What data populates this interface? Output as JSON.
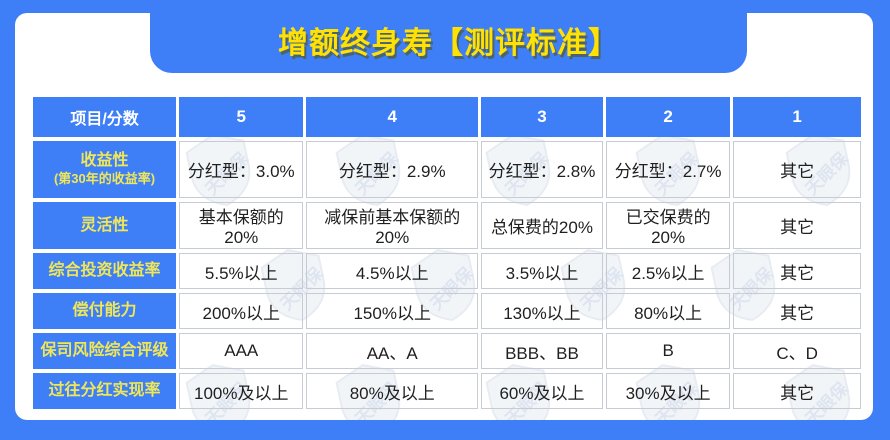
{
  "banner": {
    "title": "增额终身寿【测评标准】"
  },
  "watermark": {
    "text": "天眼保"
  },
  "colors": {
    "frame_blue": "#3E7EF7",
    "title_yellow": "#FFE103",
    "label_yellow": "#F0E756",
    "cell_border": "#c6cbd4"
  },
  "chart_data": {
    "type": "table",
    "title": "增额终身寿【测评标准】",
    "columns": [
      "项目/分数",
      "5",
      "4",
      "3",
      "2",
      "1"
    ],
    "rows": [
      {
        "label": "收益性",
        "sublabel": "(第30年的收益率)",
        "values": [
          "分红型：3.0%",
          "分红型：2.9%",
          "分红型：2.8%",
          "分红型：2.7%",
          "其它"
        ]
      },
      {
        "label": "灵活性",
        "sublabel": "",
        "values": [
          "基本保额的20%",
          "减保前基本保额的20%",
          "总保费的20%",
          "已交保费的20%",
          "其它"
        ]
      },
      {
        "label": "综合投资收益率",
        "sublabel": "",
        "values": [
          "5.5%以上",
          "4.5%以上",
          "3.5%以上",
          "2.5%以上",
          "其它"
        ]
      },
      {
        "label": "偿付能力",
        "sublabel": "",
        "values": [
          "200%以上",
          "150%以上",
          "130%以上",
          "80%以上",
          "其它"
        ]
      },
      {
        "label": "保司风险综合评级",
        "sublabel": "",
        "values": [
          "AAA",
          "AA、A",
          "BBB、BB",
          "B",
          "C、D"
        ]
      },
      {
        "label": "过往分红实现率",
        "sublabel": "",
        "values": [
          "100%及以上",
          "80%及以上",
          "60%及以上",
          "30%及以上",
          "其它"
        ]
      }
    ]
  }
}
